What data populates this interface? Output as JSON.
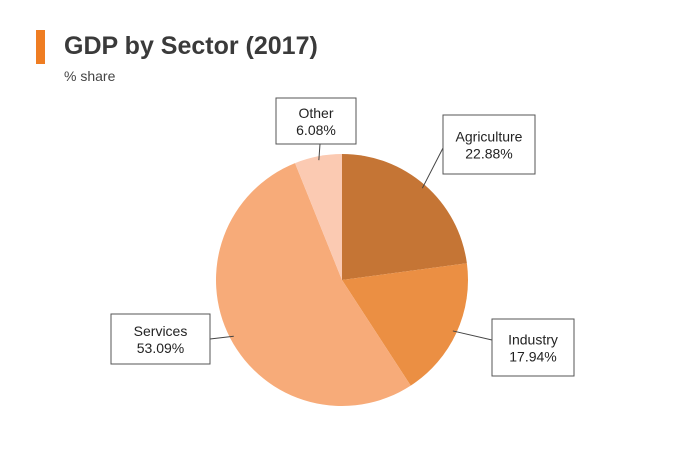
{
  "chart_data": {
    "type": "pie",
    "title": "GDP by Sector (2017)",
    "subtitle": "% share",
    "slices": [
      {
        "label": "Agriculture",
        "value": 22.88,
        "value_label": "22.88%",
        "color": "#c57535"
      },
      {
        "label": "Industry",
        "value": 17.94,
        "value_label": "17.94%",
        "color": "#eb8f43"
      },
      {
        "label": "Services",
        "value": 53.09,
        "value_label": "53.09%",
        "color": "#f7ab79"
      },
      {
        "label": "Other",
        "value": 6.08,
        "value_label": "6.08%",
        "color": "#fbcab2"
      }
    ],
    "legend": "none"
  },
  "accent_color": "#ef7d22"
}
